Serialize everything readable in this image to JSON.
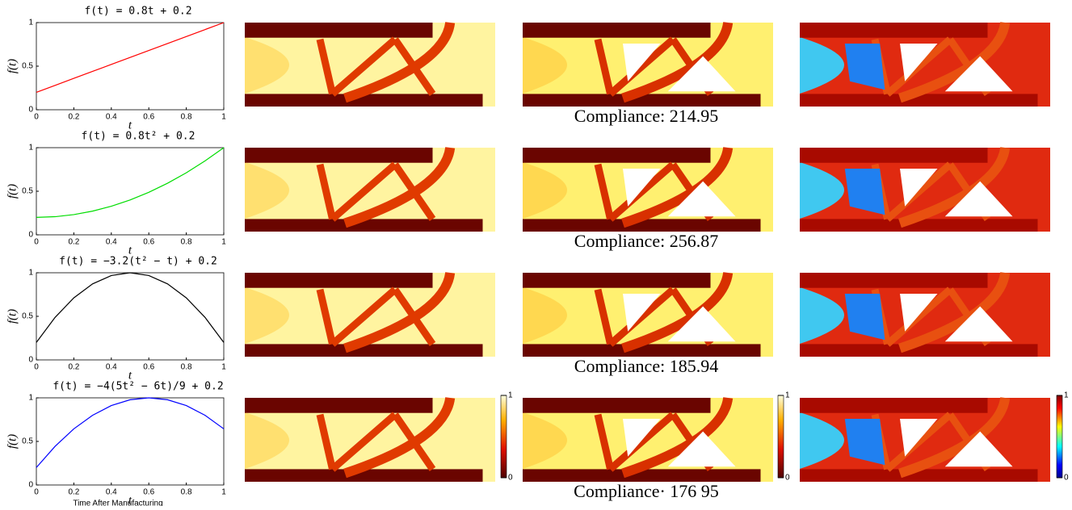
{
  "chart_data": [
    {
      "type": "line",
      "title": "f(t) = 0.8t + 0.2",
      "xlabel": "t",
      "ylabel": "f(t)",
      "x": [
        0,
        0.1,
        0.2,
        0.3,
        0.4,
        0.5,
        0.6,
        0.7,
        0.8,
        0.9,
        1
      ],
      "series": [
        {
          "color": "#ff0000",
          "values": [
            0.2,
            0.28,
            0.36,
            0.44,
            0.52,
            0.6,
            0.68,
            0.76,
            0.84,
            0.92,
            1
          ]
        }
      ],
      "xlim": [
        0,
        1
      ],
      "ylim": [
        0,
        1
      ],
      "xticks": [
        0,
        0.2,
        0.4,
        0.6,
        0.8,
        1
      ],
      "yticks": [
        0,
        0.5,
        1
      ]
    },
    {
      "type": "line",
      "title": "f(t) = 0.8t² + 0.2",
      "xlabel": "t",
      "ylabel": "f(t)",
      "x": [
        0,
        0.1,
        0.2,
        0.3,
        0.4,
        0.5,
        0.6,
        0.7,
        0.8,
        0.9,
        1
      ],
      "series": [
        {
          "color": "#00dd00",
          "values": [
            0.2,
            0.208,
            0.232,
            0.272,
            0.328,
            0.4,
            0.488,
            0.592,
            0.712,
            0.848,
            1
          ]
        }
      ],
      "xlim": [
        0,
        1
      ],
      "ylim": [
        0,
        1
      ],
      "xticks": [
        0,
        0.2,
        0.4,
        0.6,
        0.8,
        1
      ],
      "yticks": [
        0,
        0.5,
        1
      ]
    },
    {
      "type": "line",
      "title": "f(t) = −3.2(t² − t) + 0.2",
      "xlabel": "t",
      "ylabel": "f(t)",
      "x": [
        0,
        0.1,
        0.2,
        0.3,
        0.4,
        0.5,
        0.6,
        0.7,
        0.8,
        0.9,
        1
      ],
      "series": [
        {
          "color": "#000000",
          "values": [
            0.2,
            0.488,
            0.712,
            0.872,
            0.968,
            1,
            0.968,
            0.872,
            0.712,
            0.488,
            0.2
          ]
        }
      ],
      "xlim": [
        0,
        1
      ],
      "ylim": [
        0,
        1
      ],
      "xticks": [
        0,
        0.2,
        0.4,
        0.6,
        0.8,
        1
      ],
      "yticks": [
        0,
        0.5,
        1
      ]
    },
    {
      "type": "line",
      "title": "f(t) = −4(5t² − 6t)/9 + 0.2",
      "xlabel": "t",
      "ylabel": "f(t)",
      "caption": "Time After Manufacturing",
      "x": [
        0,
        0.1,
        0.2,
        0.3,
        0.4,
        0.5,
        0.6,
        0.7,
        0.8,
        0.9,
        1
      ],
      "series": [
        {
          "color": "#0000ff",
          "values": [
            0.2,
            0.444,
            0.644,
            0.8,
            0.911,
            0.978,
            1,
            0.978,
            0.911,
            0.8,
            0.644
          ]
        }
      ],
      "xlim": [
        0,
        1
      ],
      "ylim": [
        0,
        1
      ],
      "xticks": [
        0,
        0.2,
        0.4,
        0.6,
        0.8,
        1
      ],
      "yticks": [
        0,
        0.5,
        1
      ]
    }
  ],
  "compliance": [
    "Compliance: 214.95",
    "Compliance: 256.87",
    "Compliance: 185.94",
    "Compliance· 176 95"
  ],
  "colorbars": [
    {
      "colormap": "hot",
      "lim": [
        0,
        1
      ],
      "ticks": [
        0,
        1
      ]
    },
    {
      "colormap": "hot",
      "lim": [
        0,
        1
      ],
      "ticks": [
        0,
        1
      ]
    },
    {
      "colormap": "jet",
      "lim": [
        0,
        1
      ],
      "ticks": [
        0,
        1
      ]
    }
  ]
}
